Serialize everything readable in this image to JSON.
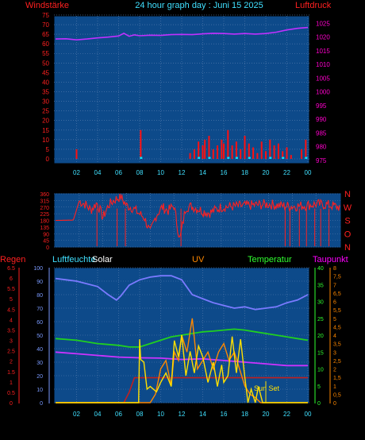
{
  "header": {
    "left": "Windstärke",
    "title": "24 hour graph day : Juni 15 2025",
    "right": "Luftdruck"
  },
  "lower_header": {
    "regen": "Regen",
    "luftfeuchte": "Luftfeuchte",
    "solar": "Solar",
    "uv": "UV",
    "temperatur": "Temperatur",
    "taupunkt": "Taupunkt"
  },
  "dir_letters": [
    "N",
    "W",
    "S",
    "O",
    "N"
  ],
  "annotation": "Sun Set",
  "colors": {
    "plot_bg": "#0d4a8a",
    "grid": "#5a7fb0",
    "red": "#ff2020",
    "pressure": "#c030ff",
    "wind_bar": "#ff1010",
    "gust": "#00e5ff",
    "humidity": "#7a7aff",
    "solar": "#ffe000",
    "uv": "#ff8800",
    "temp": "#20d020",
    "dew": "#cc33ff",
    "rain": "#c02020",
    "label_cyan": "#40e0ff",
    "label_green": "#30ff30",
    "label_magenta": "#ff00ff",
    "label_orange": "#ff8800"
  },
  "chart_data": [
    {
      "type": "line",
      "title": "24 hour graph day : Juni 15 2025",
      "x_ticks": [
        "02",
        "04",
        "06",
        "08",
        "10",
        "12",
        "14",
        "16",
        "18",
        "20",
        "22",
        "00"
      ],
      "y_left": {
        "label": "Windstärke",
        "ticks": [
          "0",
          "5",
          "10",
          "15",
          "20",
          "25",
          "30",
          "35",
          "40",
          "45",
          "50",
          "55",
          "60",
          "65",
          "70",
          "75"
        ],
        "range": [
          0,
          75
        ]
      },
      "y_right": {
        "label": "Luftdruck",
        "ticks": [
          "975",
          "980",
          "985",
          "990",
          "995",
          "1000",
          "1005",
          "1010",
          "1015",
          "1020",
          "1025"
        ],
        "range": [
          975,
          1028
        ]
      },
      "series": [
        {
          "name": "Luftdruck",
          "x": [
            0,
            1,
            2,
            3,
            4,
            5,
            6,
            6.5,
            7,
            7.5,
            8,
            9,
            10,
            11,
            12,
            13,
            14,
            15,
            16,
            17,
            18,
            19,
            20,
            21,
            22,
            23,
            24
          ],
          "values": [
            1019.3,
            1019.4,
            1019,
            1019.3,
            1019.7,
            1020,
            1020.4,
            1021.4,
            1020.3,
            1020.8,
            1020.5,
            1020.7,
            1020.6,
            1020.9,
            1021,
            1020.9,
            1021.2,
            1021.4,
            1021.3,
            1021.1,
            1021.3,
            1021.1,
            1021.3,
            1021.8,
            1022.6,
            1023.2,
            1023.5
          ]
        },
        {
          "name": "Windstärke",
          "x": [
            2,
            8.1,
            12.8,
            13.2,
            13.6,
            14,
            14.2,
            14.6,
            15,
            15.4,
            15.8,
            16,
            16.4,
            16.8,
            17.2,
            17.6,
            18,
            18.4,
            18.8,
            19.2,
            19.6,
            20,
            20.4,
            20.8,
            21.2,
            21.6,
            22,
            22.4,
            23.4,
            23.8
          ],
          "values": [
            5,
            15,
            3,
            5,
            9,
            7,
            10,
            12,
            5,
            7,
            10,
            8,
            15,
            7,
            9,
            5,
            12,
            8,
            6,
            3,
            9,
            4,
            10,
            7,
            8,
            4,
            6,
            2,
            5,
            10
          ]
        },
        {
          "x": [
            8.1,
            13.6,
            14.6,
            16.4,
            17.2,
            18.4,
            20.4,
            21.6,
            23.8
          ],
          "values": [
            1,
            1,
            1,
            1,
            1,
            1,
            1,
            1,
            1
          ]
        }
      ]
    },
    {
      "type": "line",
      "y_ticks": [
        "360",
        "315",
        "270",
        "225",
        "180",
        "135",
        "90",
        "45",
        "0"
      ],
      "range": [
        0,
        360
      ],
      "series": [
        {
          "x": [
            0,
            1.5,
            2,
            2.5,
            3,
            3.5,
            4,
            4.5,
            5,
            5.5,
            6,
            6.5,
            7,
            7.5,
            8,
            8.5,
            9,
            9.5,
            10,
            10.5,
            11,
            11.5,
            12,
            12.5,
            13,
            14,
            15,
            16,
            17,
            18,
            19,
            20,
            21,
            22,
            23,
            24
          ],
          "values": [
            180,
            182,
            310,
            290,
            250,
            300,
            200,
            285,
            320,
            340,
            280,
            265,
            230,
            200,
            95,
            215,
            270,
            245,
            280,
            45,
            270,
            275,
            260,
            240,
            230,
            270,
            275,
            280,
            285,
            290,
            280,
            275,
            280,
            290,
            285,
            270
          ]
        }
      ]
    },
    {
      "type": "line",
      "x_ticks": [
        "02",
        "04",
        "06",
        "08",
        "10",
        "12",
        "14",
        "16",
        "18",
        "20",
        "22",
        "00"
      ],
      "y_regen": {
        "label": "Regen",
        "ticks": [
          "0",
          "0.5",
          "1",
          "1.5",
          "2",
          "2.5",
          "3",
          "3.5",
          "4",
          "4.5",
          "5",
          "5.5",
          "6",
          "6.5"
        ]
      },
      "y_left": {
        "label": "Luftfeuchte",
        "ticks": [
          "0",
          "10",
          "20",
          "30",
          "40",
          "50",
          "60",
          "70",
          "80",
          "90",
          "100"
        ],
        "range": [
          0,
          100
        ]
      },
      "y_right": {
        "label": "Temperatur",
        "ticks": [
          "0",
          "5",
          "10",
          "15",
          "20",
          "25",
          "30",
          "35",
          "40"
        ],
        "range": [
          0,
          40
        ]
      },
      "y_uv": {
        "label": "Taupunkt",
        "ticks": [
          "0",
          "0,5",
          "1",
          "1,5",
          "2",
          "2,5",
          "3",
          "3,5",
          "4",
          "4,5",
          "5",
          "5,5",
          "6",
          "6,5",
          "7",
          "7,5",
          "8"
        ],
        "range": [
          0,
          8
        ]
      },
      "series": [
        {
          "name": "Luftfeuchte",
          "x": [
            0,
            1,
            2,
            3,
            4,
            5,
            5.8,
            6.2,
            7,
            8,
            9,
            10,
            11,
            12,
            13,
            14,
            15,
            16,
            17,
            18,
            19,
            20,
            21,
            22,
            23,
            24
          ],
          "values": [
            92,
            91,
            90,
            88,
            86,
            80,
            76,
            79,
            87,
            91,
            93,
            94,
            94,
            91,
            80,
            77,
            74,
            72,
            70,
            71,
            69,
            70,
            71,
            74,
            76,
            80
          ]
        },
        {
          "name": "Solar",
          "x": [
            0,
            7.9,
            8,
            8.1,
            8.4,
            8.7,
            9,
            9.6,
            10,
            10.5,
            11,
            11.3,
            11.7,
            12,
            12.4,
            12.8,
            13.2,
            13.6,
            14,
            14.5,
            15,
            15.4,
            15.8,
            16,
            16.4,
            16.8,
            17.2,
            17.6,
            18,
            18.3,
            18.6,
            19,
            19.3,
            19.7,
            20,
            20.1,
            24
          ],
          "values": [
            0,
            0,
            47,
            32,
            30,
            10,
            12,
            8,
            15,
            22,
            12,
            46,
            34,
            50,
            20,
            38,
            22,
            42,
            34,
            15,
            30,
            12,
            28,
            15,
            20,
            49,
            22,
            47,
            19,
            0,
            10,
            0,
            12,
            0,
            0,
            0,
            0
          ]
        },
        {
          "name": "UV",
          "x": [
            0,
            9,
            9.5,
            10,
            10.5,
            11,
            11.3,
            11.7,
            12,
            12.5,
            13,
            13.5,
            14,
            14.5,
            15,
            15.5,
            16,
            16.5,
            17,
            17.5,
            18,
            18.5,
            19,
            19.5,
            20,
            24
          ],
          "values": [
            0,
            0,
            0.5,
            2,
            2.5,
            1,
            3,
            2.5,
            4,
            3,
            5,
            2,
            2.5,
            3,
            2,
            3,
            3.5,
            2.5,
            3,
            2,
            1,
            0.5,
            0.3,
            0,
            0,
            0
          ]
        },
        {
          "name": "Temperatur",
          "x": [
            0,
            2,
            4,
            6,
            7,
            8,
            9,
            10,
            11,
            12,
            13,
            14,
            15,
            16,
            17,
            18,
            19,
            20,
            21,
            22,
            23,
            24
          ],
          "values": [
            19,
            18.5,
            17.5,
            17,
            16.5,
            16.5,
            17.5,
            18.5,
            19.5,
            20,
            20.5,
            21,
            21.2,
            21.5,
            21.8,
            21.5,
            21,
            20.5,
            20,
            19.5,
            19,
            18.5
          ]
        },
        {
          "name": "Taupunkt",
          "x": [
            0,
            2,
            4,
            6,
            8,
            10,
            12,
            14,
            16,
            18,
            20,
            22,
            24
          ],
          "values": [
            15,
            14.5,
            14,
            13.5,
            13.3,
            13.2,
            12.8,
            13,
            12.5,
            12,
            11.5,
            11,
            11
          ]
        },
        {
          "name": "Regen",
          "x": [
            0,
            5.5,
            6.5,
            7,
            7.5,
            24
          ],
          "values": [
            0,
            0,
            0,
            0.5,
            1.2,
            1.2
          ]
        }
      ]
    }
  ]
}
